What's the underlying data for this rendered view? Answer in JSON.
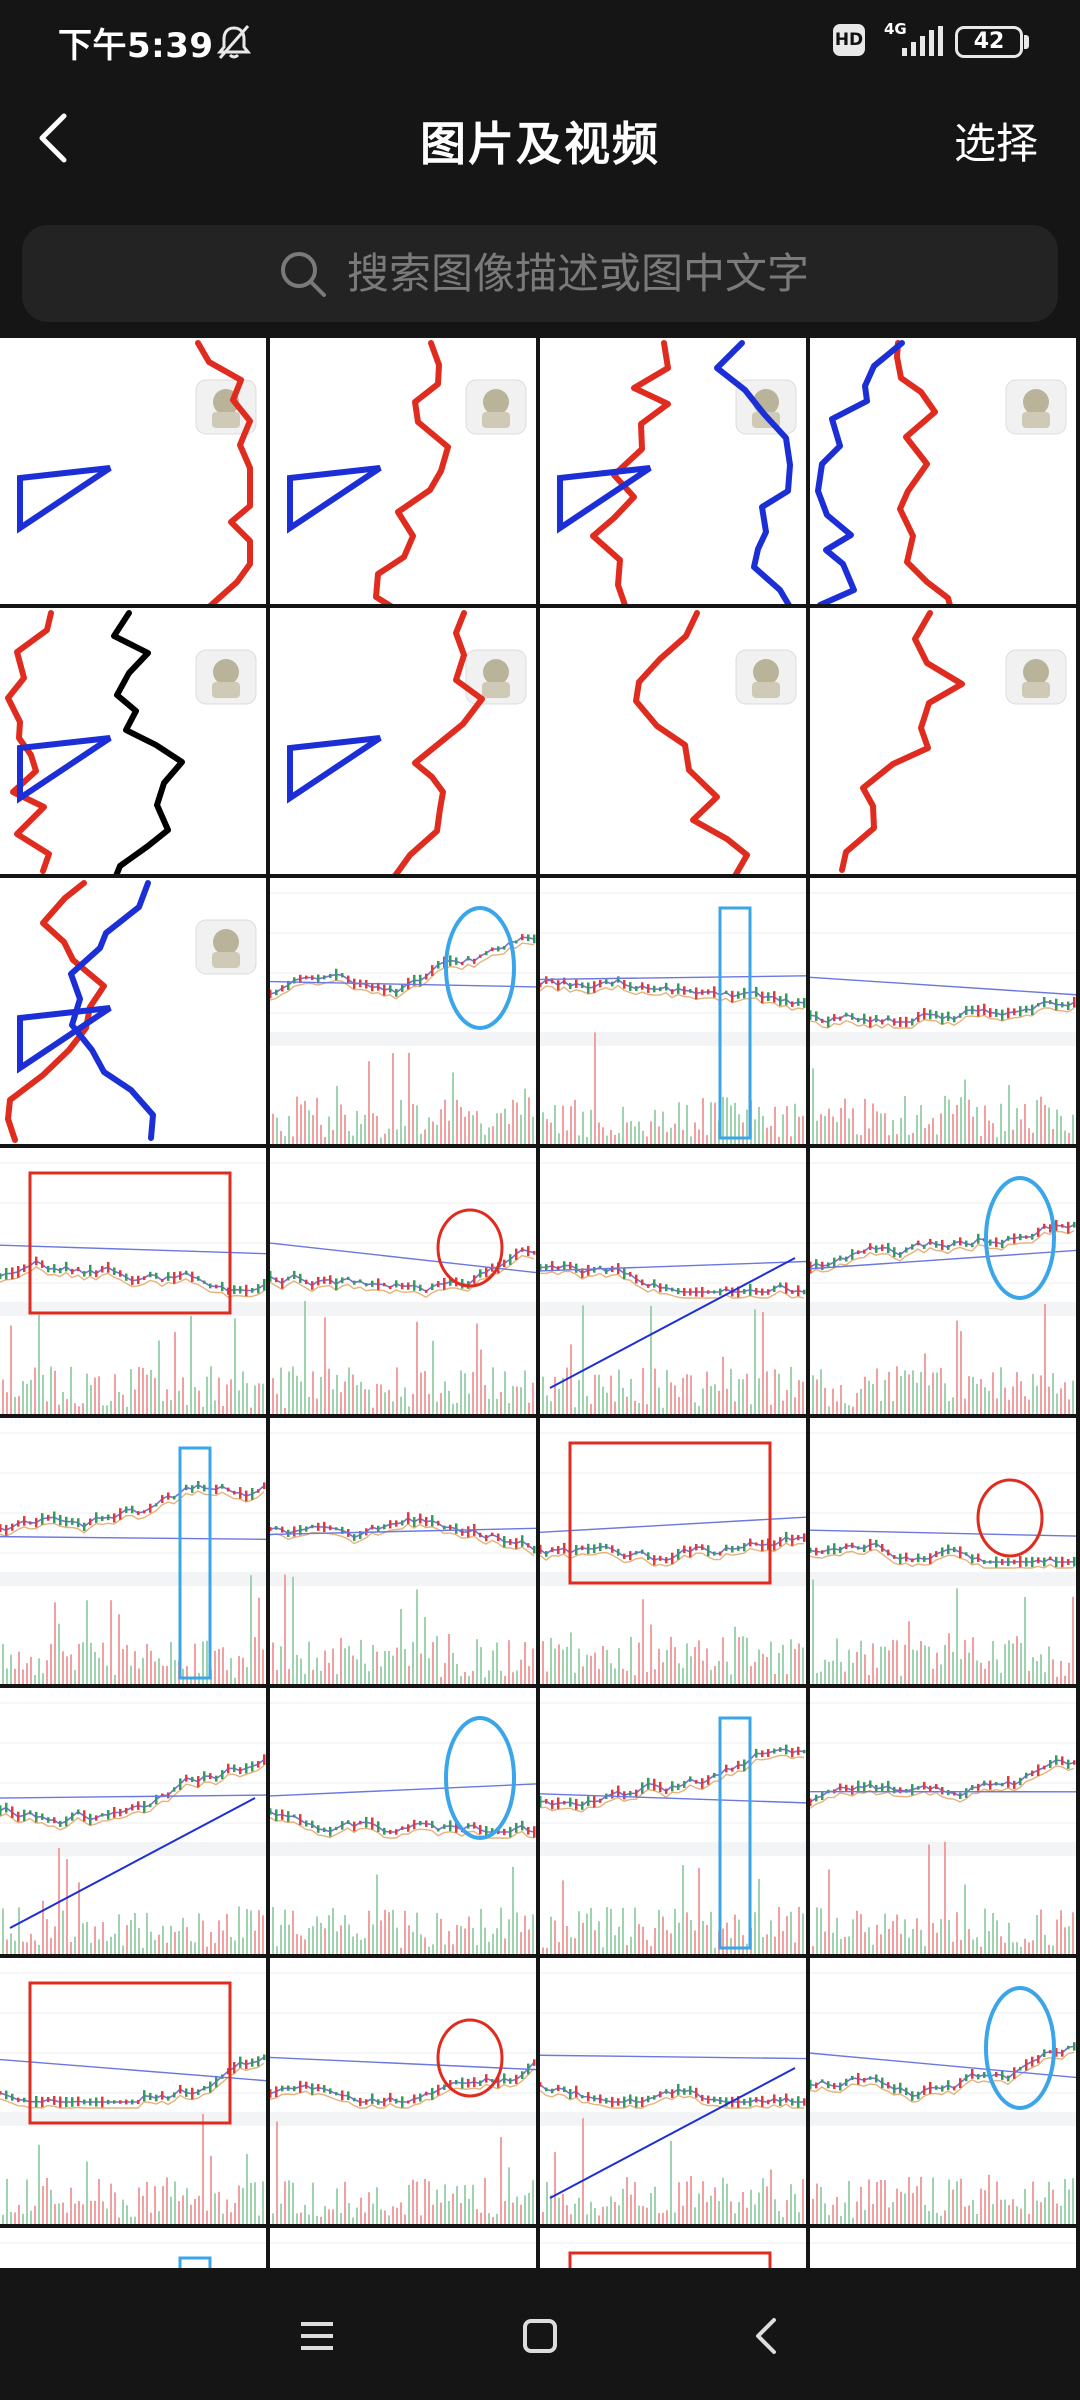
{
  "status_bar": {
    "time": "下午5:39",
    "hd_label": "HD",
    "network_label": "4G",
    "battery": "42"
  },
  "header": {
    "title": "图片及视频",
    "select_label": "选择"
  },
  "search": {
    "placeholder": "搜索图像描述或图中文字"
  },
  "gallery": {
    "thumbnails": [
      {
        "kind": "drawing"
      },
      {
        "kind": "drawing"
      },
      {
        "kind": "drawing"
      },
      {
        "kind": "drawing"
      },
      {
        "kind": "drawing"
      },
      {
        "kind": "drawing"
      },
      {
        "kind": "drawing"
      },
      {
        "kind": "drawing"
      },
      {
        "kind": "drawing"
      },
      {
        "kind": "chart"
      },
      {
        "kind": "chart"
      },
      {
        "kind": "chart"
      },
      {
        "kind": "chart"
      },
      {
        "kind": "chart"
      },
      {
        "kind": "chart"
      },
      {
        "kind": "chart"
      },
      {
        "kind": "chart"
      },
      {
        "kind": "chart"
      },
      {
        "kind": "chart"
      },
      {
        "kind": "chart"
      },
      {
        "kind": "chart"
      },
      {
        "kind": "chart"
      },
      {
        "kind": "chart"
      },
      {
        "kind": "chart"
      },
      {
        "kind": "chart"
      },
      {
        "kind": "chart"
      },
      {
        "kind": "chart"
      },
      {
        "kind": "chart"
      },
      {
        "kind": "chart"
      },
      {
        "kind": "chart"
      },
      {
        "kind": "chart"
      },
      {
        "kind": "chart"
      }
    ]
  },
  "colors": {
    "background": "#151515",
    "annotation_red": "#e02b1f",
    "annotation_blue": "#1c2fd6",
    "annotation_cyan": "#3aa5e8",
    "search_bg": "#232323"
  },
  "icons": {
    "back": "chevron-left-icon",
    "mute": "bell-off-icon",
    "search": "search-icon",
    "nav_menu": "menu-icon",
    "nav_home": "home-icon",
    "nav_back": "back-icon"
  }
}
